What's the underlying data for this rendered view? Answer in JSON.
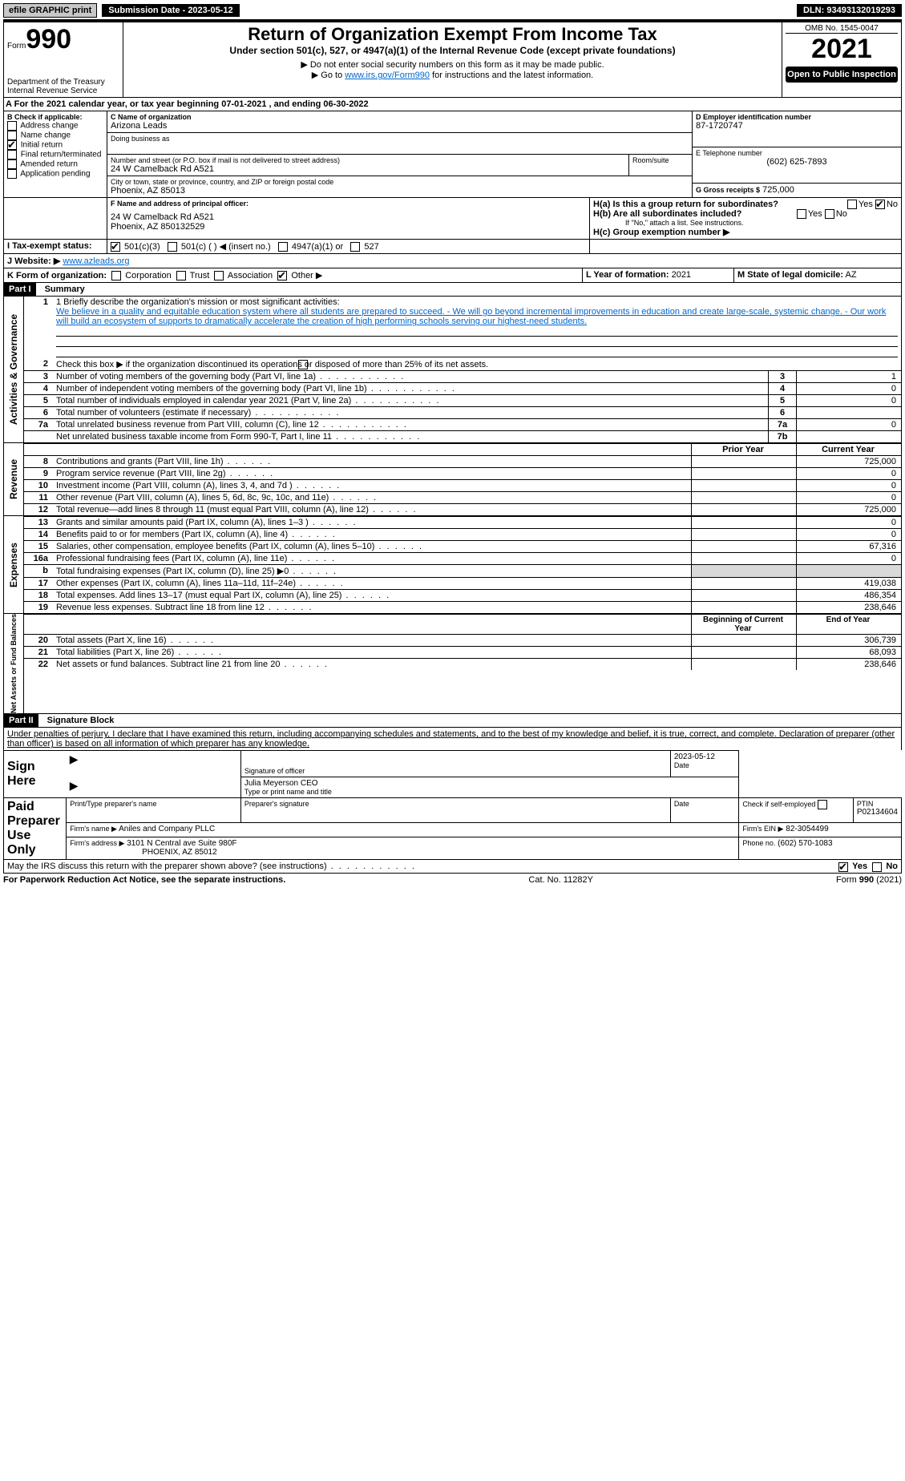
{
  "topbar": {
    "efile": "efile GRAPHIC print",
    "submission_label": "Submission Date - 2023-05-12",
    "dln_label": "DLN: 93493132019293"
  },
  "header": {
    "form_label": "Form",
    "form_number": "990",
    "dept": "Department of the Treasury",
    "irs": "Internal Revenue Service",
    "title": "Return of Organization Exempt From Income Tax",
    "subtitle": "Under section 501(c), 527, or 4947(a)(1) of the Internal Revenue Code (except private foundations)",
    "note1": "▶ Do not enter social security numbers on this form as it may be made public.",
    "note2_pre": "▶ Go to ",
    "note2_link": "www.irs.gov/Form990",
    "note2_post": " for instructions and the latest information.",
    "omb": "OMB No. 1545-0047",
    "year": "2021",
    "open": "Open to Public Inspection"
  },
  "lineA": {
    "text_pre": "For the 2021 calendar year, or tax year beginning ",
    "begin": "07-01-2021",
    "text_mid": " , and ending ",
    "end": "06-30-2022"
  },
  "boxB": {
    "label": "B Check if applicable:",
    "items": [
      "Address change",
      "Name change",
      "Initial return",
      "Final return/terminated",
      "Amended return",
      "Application pending"
    ],
    "checked_index": 2
  },
  "boxC": {
    "label": "C Name of organization",
    "name": "Arizona Leads",
    "dba_label": "Doing business as",
    "street_label": "Number and street (or P.O. box if mail is not delivered to street address)",
    "room_label": "Room/suite",
    "street": "24 W Camelback Rd A521",
    "city_label": "City or town, state or province, country, and ZIP or foreign postal code",
    "city": "Phoenix, AZ  85013"
  },
  "boxD": {
    "label": "D Employer identification number",
    "value": "87-1720747"
  },
  "boxE": {
    "label": "E Telephone number",
    "value": "(602) 625-7893"
  },
  "boxG": {
    "label": "G Gross receipts $",
    "value": "725,000"
  },
  "boxF": {
    "label": "F  Name and address of principal officer:",
    "line1": "24 W Camelback Rd A521",
    "line2": "Phoenix, AZ  850132529"
  },
  "boxH": {
    "a_label": "H(a)  Is this a group return for subordinates?",
    "b_label": "H(b)  Are all subordinates included?",
    "b_note": "If \"No,\" attach a list. See instructions.",
    "c_label": "H(c)  Group exemption number ▶",
    "yes": "Yes",
    "no": "No"
  },
  "boxI": {
    "label": "I     Tax-exempt status:",
    "opts": [
      "501(c)(3)",
      "501(c) (  ) ◀ (insert no.)",
      "4947(a)(1) or",
      "527"
    ]
  },
  "boxJ": {
    "label": "J    Website: ▶",
    "value": "www.azleads.org"
  },
  "boxK": {
    "label": "K Form of organization:",
    "opts": [
      "Corporation",
      "Trust",
      "Association",
      "Other ▶"
    ]
  },
  "boxL": {
    "label": "L Year of formation:",
    "value": "2021"
  },
  "boxM": {
    "label": "M State of legal domicile:",
    "value": "AZ"
  },
  "parts": {
    "p1": "Part I",
    "p1_title": "Summary",
    "p2": "Part II",
    "p2_title": "Signature Block"
  },
  "summary": {
    "line1_label": "1  Briefly describe the organization's mission or most significant activities:",
    "mission": "We believe in a quality and equitable education system where all students are prepared to succeed. - We will go beyond incremental improvements in education and create large-scale, systemic change. - Our work will build an ecosystem of supports to dramatically accelerate the creation of high performing schools serving our highest-need students.",
    "line2": "Check this box ▶        if the organization discontinued its operations or disposed of more than 25% of its net assets.",
    "governance_rows": [
      {
        "n": "3",
        "text": "Number of voting members of the governing body (Part VI, line 1a)",
        "box": "3",
        "val": "1"
      },
      {
        "n": "4",
        "text": "Number of independent voting members of the governing body (Part VI, line 1b)",
        "box": "4",
        "val": "0"
      },
      {
        "n": "5",
        "text": "Total number of individuals employed in calendar year 2021 (Part V, line 2a)",
        "box": "5",
        "val": "0"
      },
      {
        "n": "6",
        "text": "Total number of volunteers (estimate if necessary)",
        "box": "6",
        "val": ""
      },
      {
        "n": "7a",
        "text": "Total unrelated business revenue from Part VIII, column (C), line 12",
        "box": "7a",
        "val": "0"
      },
      {
        "n": "",
        "text": "Net unrelated business taxable income from Form 990-T, Part I, line 11",
        "box": "7b",
        "val": ""
      }
    ],
    "col_prior": "Prior Year",
    "col_current": "Current Year",
    "revenue_rows": [
      {
        "n": "8",
        "text": "Contributions and grants (Part VIII, line 1h)",
        "prior": "",
        "cur": "725,000"
      },
      {
        "n": "9",
        "text": "Program service revenue (Part VIII, line 2g)",
        "prior": "",
        "cur": "0"
      },
      {
        "n": "10",
        "text": "Investment income (Part VIII, column (A), lines 3, 4, and 7d )",
        "prior": "",
        "cur": "0"
      },
      {
        "n": "11",
        "text": "Other revenue (Part VIII, column (A), lines 5, 6d, 8c, 9c, 10c, and 11e)",
        "prior": "",
        "cur": "0"
      },
      {
        "n": "12",
        "text": "Total revenue—add lines 8 through 11 (must equal Part VIII, column (A), line 12)",
        "prior": "",
        "cur": "725,000"
      }
    ],
    "expense_rows": [
      {
        "n": "13",
        "text": "Grants and similar amounts paid (Part IX, column (A), lines 1–3 )",
        "prior": "",
        "cur": "0"
      },
      {
        "n": "14",
        "text": "Benefits paid to or for members (Part IX, column (A), line 4)",
        "prior": "",
        "cur": "0"
      },
      {
        "n": "15",
        "text": "Salaries, other compensation, employee benefits (Part IX, column (A), lines 5–10)",
        "prior": "",
        "cur": "67,316"
      },
      {
        "n": "16a",
        "text": "Professional fundraising fees (Part IX, column (A), line 11e)",
        "prior": "",
        "cur": "0"
      },
      {
        "n": "b",
        "text": "Total fundraising expenses (Part IX, column (D), line 25) ▶0",
        "prior": "shade",
        "cur": "shade"
      },
      {
        "n": "17",
        "text": "Other expenses (Part IX, column (A), lines 11a–11d, 11f–24e)",
        "prior": "",
        "cur": "419,038"
      },
      {
        "n": "18",
        "text": "Total expenses. Add lines 13–17 (must equal Part IX, column (A), line 25)",
        "prior": "",
        "cur": "486,354"
      },
      {
        "n": "19",
        "text": "Revenue less expenses. Subtract line 18 from line 12",
        "prior": "",
        "cur": "238,646"
      }
    ],
    "col_begin": "Beginning of Current Year",
    "col_end": "End of Year",
    "netassets_rows": [
      {
        "n": "20",
        "text": "Total assets (Part X, line 16)",
        "prior": "",
        "cur": "306,739"
      },
      {
        "n": "21",
        "text": "Total liabilities (Part X, line 26)",
        "prior": "",
        "cur": "68,093"
      },
      {
        "n": "22",
        "text": "Net assets or fund balances. Subtract line 21 from line 20",
        "prior": "",
        "cur": "238,646"
      }
    ],
    "vert_labels": {
      "gov": "Activities & Governance",
      "rev": "Revenue",
      "exp": "Expenses",
      "net": "Net Assets or Fund Balances"
    }
  },
  "sig": {
    "penalties": "Under penalties of perjury, I declare that I have examined this return, including accompanying schedules and statements, and to the best of my knowledge and belief, it is true, correct, and complete. Declaration of preparer (other than officer) is based on all information of which preparer has any knowledge.",
    "sign_here": "Sign Here",
    "sig_officer": "Signature of officer",
    "date_label": "Date",
    "date_val": "2023-05-12",
    "name_title": "Julia Meyerson  CEO",
    "name_title_label": "Type or print name and title",
    "paid": "Paid Preparer Use Only",
    "prep_name_label": "Print/Type preparer's name",
    "prep_sig_label": "Preparer's signature",
    "check_self": "Check          if self-employed",
    "ptin_label": "PTIN",
    "ptin": "P02134604",
    "firm_name_label": "Firm's name     ▶",
    "firm_name": "Aniles and Company PLLC",
    "firm_ein_label": "Firm's EIN ▶",
    "firm_ein": "82-3054499",
    "firm_addr_label": "Firm's address ▶",
    "firm_addr1": "3101 N Central ave Suite 980F",
    "firm_addr2": "PHOENIX, AZ  85012",
    "phone_label": "Phone no.",
    "phone": "(602) 570-1083",
    "may_irs": "May the IRS discuss this return with the preparer shown above? (see instructions)",
    "yes": "Yes",
    "no": "No"
  },
  "footer": {
    "left": "For Paperwork Reduction Act Notice, see the separate instructions.",
    "mid": "Cat. No. 11282Y",
    "right": "Form 990 (2021)"
  }
}
